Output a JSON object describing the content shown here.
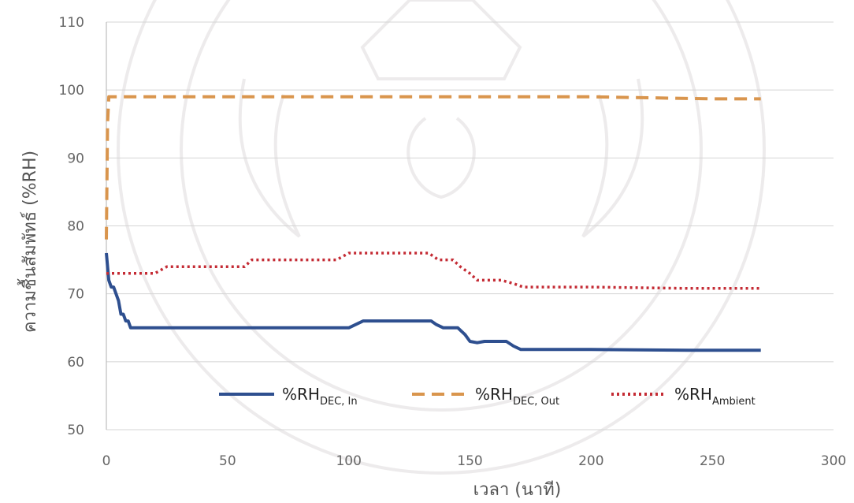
{
  "chart_data": {
    "type": "line",
    "xlabel": "เวลา (นาที)",
    "ylabel": "ความชื้นสัมพัทธ์ (%RH)",
    "xlim": [
      0,
      300
    ],
    "ylim": [
      50,
      110
    ],
    "x_ticks": [
      "0",
      "50",
      "100",
      "150",
      "200",
      "250",
      "300"
    ],
    "y_ticks": [
      "50",
      "60",
      "70",
      "80",
      "90",
      "100",
      "110"
    ],
    "grid": "horizontal",
    "legend_position": "bottom-inside",
    "series": [
      {
        "name": "%RH",
        "sub": "DEC, In",
        "color": "#2e4f8f",
        "style": "solid",
        "x": [
          0,
          1,
          2,
          3,
          4,
          5,
          6,
          7,
          8,
          9,
          10,
          30,
          60,
          90,
          100,
          103,
          106,
          110,
          120,
          134,
          136,
          139,
          142,
          145,
          148,
          150,
          153,
          156,
          160,
          165,
          168,
          171,
          175,
          200,
          240,
          270
        ],
        "values": [
          76,
          72,
          71,
          71,
          70,
          69,
          67,
          67,
          66,
          66,
          65,
          65,
          65,
          65,
          65,
          65.5,
          66,
          66,
          66,
          66,
          65.5,
          65,
          65,
          65,
          64,
          63,
          62.8,
          63,
          63,
          63,
          62.3,
          61.8,
          61.8,
          61.8,
          61.7,
          61.7
        ]
      },
      {
        "name": "%RH",
        "sub": "DEC, Out",
        "color": "#d9954d",
        "style": "dashed",
        "x": [
          0,
          0.5,
          1,
          2,
          30,
          60,
          100,
          150,
          200,
          250,
          270
        ],
        "values": [
          78,
          95,
          99,
          99,
          99,
          99,
          99,
          99,
          99,
          98.7,
          98.7
        ]
      },
      {
        "name": "%RH",
        "sub": "Ambient",
        "color": "#c42b34",
        "style": "dotted",
        "x": [
          0,
          1,
          20,
          25,
          57,
          60,
          95,
          100,
          133,
          137,
          143,
          146,
          150,
          153,
          160,
          163,
          168,
          172,
          200,
          240,
          270
        ],
        "values": [
          73,
          73,
          73,
          74,
          74,
          75,
          75,
          76,
          76,
          75,
          75,
          74,
          73,
          72,
          72,
          72,
          71.5,
          71,
          71,
          70.8,
          70.8
        ]
      }
    ]
  }
}
